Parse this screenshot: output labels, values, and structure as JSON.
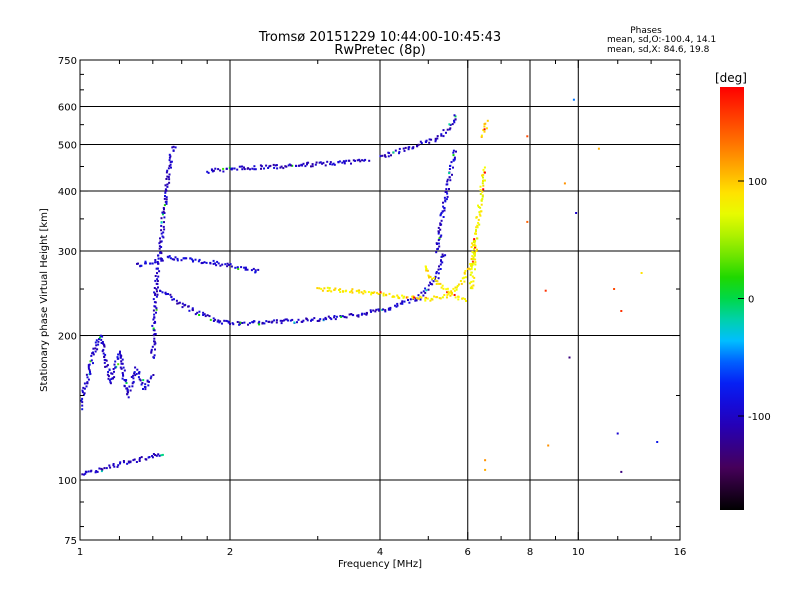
{
  "chart_data": {
    "type": "scatter",
    "title": "Tromsø 20151229 10:44:00-10:45:43",
    "subtitle": "RwPretec (8p)",
    "xlabel": "Frequency [MHz]",
    "ylabel": "Stationary phase Virtual Height [km]",
    "xscale": "log",
    "yscale": "log",
    "xlim": [
      1,
      16
    ],
    "ylim": [
      75,
      750
    ],
    "x_ticks": [
      1,
      2,
      4,
      6,
      8,
      10,
      16
    ],
    "x_tick_labels": [
      "1",
      "2",
      "4",
      "6",
      "8",
      "10",
      "16"
    ],
    "x_minor_ticks": [
      1.2,
      1.4,
      1.6,
      1.8,
      3,
      5,
      7,
      9,
      12,
      14
    ],
    "y_ticks": [
      75,
      100,
      200,
      300,
      400,
      500,
      600,
      750
    ],
    "y_tick_labels": [
      "75",
      "100",
      "200",
      "300",
      "400",
      "500",
      "600",
      "750"
    ],
    "y_minor_ticks": [
      80,
      90,
      150,
      250,
      350,
      450,
      550,
      650,
      700
    ],
    "grid": true,
    "stats": {
      "header": "Phases",
      "line1": "mean, sd,O:-100.4, 14.1",
      "line2": "mean, sd,X:  84.6, 19.8"
    },
    "colorbar": {
      "label": "[deg]",
      "range": [
        -180,
        180
      ],
      "ticks": [
        100,
        0,
        -100
      ],
      "tick_labels": [
        "100",
        "0",
        "-100"
      ],
      "colormap": "rainbow"
    },
    "series": [
      {
        "mode": "O",
        "phase_mean": -100.4,
        "traces": [
          {
            "x": [
              1.0,
              1.1,
              1.2,
              1.3,
              1.4,
              1.48
            ],
            "y": [
              103,
              105,
              108,
              110,
              112,
              114
            ],
            "phase": -105
          },
          {
            "x": [
              1.0,
              1.05,
              1.1,
              1.15,
              1.2,
              1.25,
              1.3,
              1.35,
              1.4
            ],
            "y": [
              140,
              175,
              200,
              160,
              185,
              150,
              170,
              155,
              165
            ],
            "phase": -98
          },
          {
            "x": [
              1.4,
              1.42,
              1.45,
              1.48,
              1.5,
              1.52,
              1.55
            ],
            "y": [
              180,
              250,
              300,
              380,
              420,
              470,
              500
            ],
            "phase": -102
          },
          {
            "x": [
              1.45,
              1.6,
              1.8,
              2.0,
              2.4,
              3.0,
              3.6,
              4.2,
              4.8,
              5.2,
              5.4
            ],
            "y": [
              250,
              232,
              218,
              212,
              213,
              216,
              221,
              228,
              240,
              265,
              300
            ],
            "phase": -100
          },
          {
            "x": [
              1.3,
              1.5,
              1.8,
              2.0,
              2.3
            ],
            "y": [
              280,
              290,
              285,
              280,
              272
            ],
            "phase": -96
          },
          {
            "x": [
              1.8,
              2.0,
              2.5,
              3.0,
              3.5,
              3.8
            ],
            "y": [
              440,
              445,
              450,
              455,
              460,
              465
            ],
            "phase": -104
          },
          {
            "x": [
              5.2,
              5.3,
              5.4,
              5.5,
              5.6,
              5.65
            ],
            "y": [
              300,
              340,
              380,
              420,
              460,
              490
            ],
            "phase": -97
          },
          {
            "x": [
              4.0,
              4.4,
              4.8,
              5.2,
              5.5,
              5.7
            ],
            "y": [
              470,
              485,
              500,
              515,
              540,
              580
            ],
            "phase": -103
          }
        ]
      },
      {
        "mode": "X",
        "phase_mean": 84.6,
        "traces": [
          {
            "x": [
              3.0,
              3.5,
              4.0,
              4.5,
              5.0,
              5.5,
              5.8,
              6.1,
              6.2
            ],
            "y": [
              250,
              248,
              245,
              240,
              238,
              242,
              255,
              280,
              320
            ],
            "phase": 85
          },
          {
            "x": [
              6.1,
              6.2,
              6.3,
              6.4,
              6.5
            ],
            "y": [
              250,
              300,
              350,
              400,
              450
            ],
            "phase": 80
          },
          {
            "x": [
              6.4,
              6.5,
              6.6
            ],
            "y": [
              520,
              540,
              560
            ],
            "phase": 95
          },
          {
            "x": [
              4.9,
              5.1,
              5.4,
              5.7,
              6.0
            ],
            "y": [
              280,
              262,
              250,
              240,
              235
            ],
            "phase": 88
          }
        ]
      }
    ],
    "scattered_points": [
      {
        "x": 7.9,
        "y": 520,
        "phase": 150
      },
      {
        "x": 7.9,
        "y": 345,
        "phase": 140
      },
      {
        "x": 8.6,
        "y": 248,
        "phase": 160
      },
      {
        "x": 9.4,
        "y": 415,
        "phase": 120
      },
      {
        "x": 9.6,
        "y": 180,
        "phase": -130
      },
      {
        "x": 9.9,
        "y": 360,
        "phase": -100
      },
      {
        "x": 11.0,
        "y": 490,
        "phase": 110
      },
      {
        "x": 11.8,
        "y": 250,
        "phase": 150
      },
      {
        "x": 12.2,
        "y": 225,
        "phase": 160
      },
      {
        "x": 13.4,
        "y": 270,
        "phase": 90
      },
      {
        "x": 12.0,
        "y": 125,
        "phase": -95
      },
      {
        "x": 12.2,
        "y": 104,
        "phase": -130
      },
      {
        "x": 14.4,
        "y": 120,
        "phase": -80
      },
      {
        "x": 6.5,
        "y": 110,
        "phase": 120
      },
      {
        "x": 6.5,
        "y": 105,
        "phase": 110
      },
      {
        "x": 8.7,
        "y": 118,
        "phase": 120
      },
      {
        "x": 9.8,
        "y": 620,
        "phase": -50
      }
    ]
  }
}
